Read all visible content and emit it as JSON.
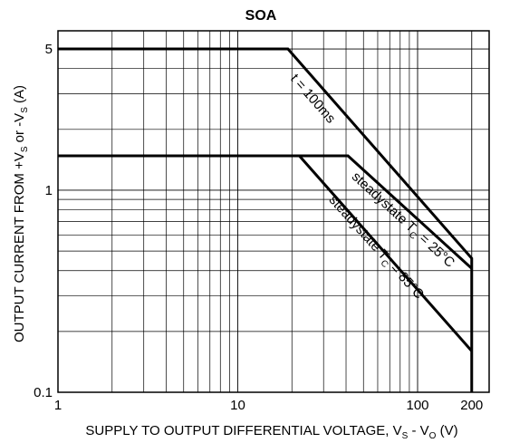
{
  "chart_data": {
    "type": "line",
    "title": "SOA",
    "x_label": [
      {
        "text": "SUPPLY TO OUTPUT DIFFERENTIAL VOLTAGE, V"
      },
      {
        "text": "S",
        "sub": true
      },
      {
        "text": " - V"
      },
      {
        "text": "O",
        "sub": true
      },
      {
        "text": " (V)"
      }
    ],
    "y_label": [
      {
        "text": "OUTPUT CURRENT FROM +V"
      },
      {
        "text": "S",
        "sub": true
      },
      {
        "text": " or -V"
      },
      {
        "text": "S",
        "sub": true
      },
      {
        "text": " (A)"
      }
    ],
    "xlog": true,
    "ylog": true,
    "grid": true,
    "xlim": [
      1,
      250
    ],
    "ylim": [
      0.1,
      6.15
    ],
    "xticks": [
      1,
      10,
      100,
      200
    ],
    "yticks": [
      0.1,
      1,
      5
    ],
    "xminor": [
      2,
      3,
      4,
      5,
      6,
      7,
      8,
      9,
      20,
      30,
      40,
      50,
      60,
      70,
      80,
      90
    ],
    "yminor": [
      0.2,
      0.3,
      0.4,
      0.5,
      0.6,
      0.7,
      0.8,
      0.9,
      2,
      3,
      4
    ],
    "series": [
      {
        "color": "#000000",
        "x": [
          1,
          19,
          200,
          200
        ],
        "values": [
          5,
          5,
          0.46,
          0.1
        ],
        "label": [
          {
            "text": "t = 100ms"
          }
        ]
      },
      {
        "color": "#000000",
        "x": [
          1,
          41,
          200
        ],
        "values": [
          1.48,
          1.48,
          0.41
        ],
        "label": [
          {
            "text": "steadystate T"
          },
          {
            "text": "C",
            "sub": true
          },
          {
            "text": " = 25°C"
          }
        ]
      },
      {
        "color": "#000000",
        "x": [
          1,
          22,
          200
        ],
        "values": [
          1.48,
          1.48,
          0.16
        ],
        "label": [
          {
            "text": "steadystate T"
          },
          {
            "text": "C",
            "sub": true
          },
          {
            "text": " = 85°C"
          }
        ]
      }
    ]
  }
}
